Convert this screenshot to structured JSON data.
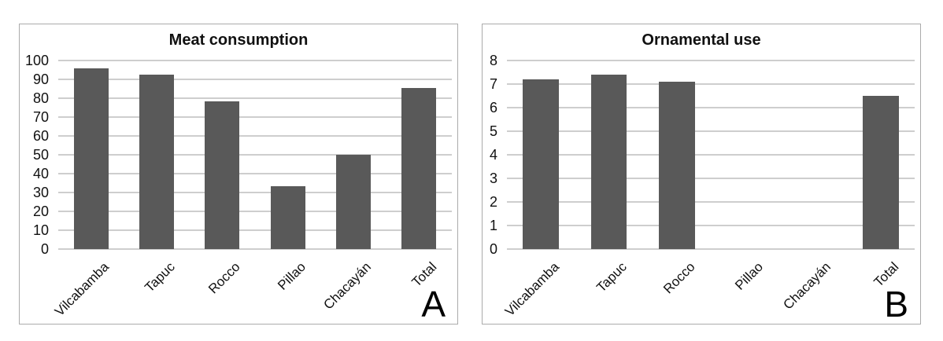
{
  "figure": {
    "description": "Two-panel bar chart figure comparing villages",
    "background": "#ffffff"
  },
  "colors": {
    "bar": "#595959",
    "gridline": "#9d9d9d",
    "panel_border": "#ababab",
    "text": "#111111"
  },
  "chart_data": [
    {
      "type": "bar",
      "panel_label": "A",
      "title": "Meat consumption",
      "categories": [
        "Vilcabamba",
        "Tapuc",
        "Rocco",
        "Pillao",
        "Chacayán",
        "Total"
      ],
      "values": [
        96,
        92.5,
        78.5,
        33.5,
        50,
        85.5
      ],
      "xlabel": "",
      "ylabel": "",
      "ylim": [
        0,
        100
      ],
      "ytick_step": 10,
      "grid": true,
      "legend": "none",
      "x_label_rotation_deg": -45
    },
    {
      "type": "bar",
      "panel_label": "B",
      "title": "Ornamental use",
      "categories": [
        "Vilcabamba",
        "Tapuc",
        "Rocco",
        "Pillao",
        "Chacayán",
        "Total"
      ],
      "values": [
        7.2,
        7.4,
        7.1,
        0,
        0,
        6.5
      ],
      "xlabel": "",
      "ylabel": "",
      "ylim": [
        0,
        8
      ],
      "ytick_step": 1,
      "grid": true,
      "legend": "none",
      "x_label_rotation_deg": -45
    }
  ]
}
